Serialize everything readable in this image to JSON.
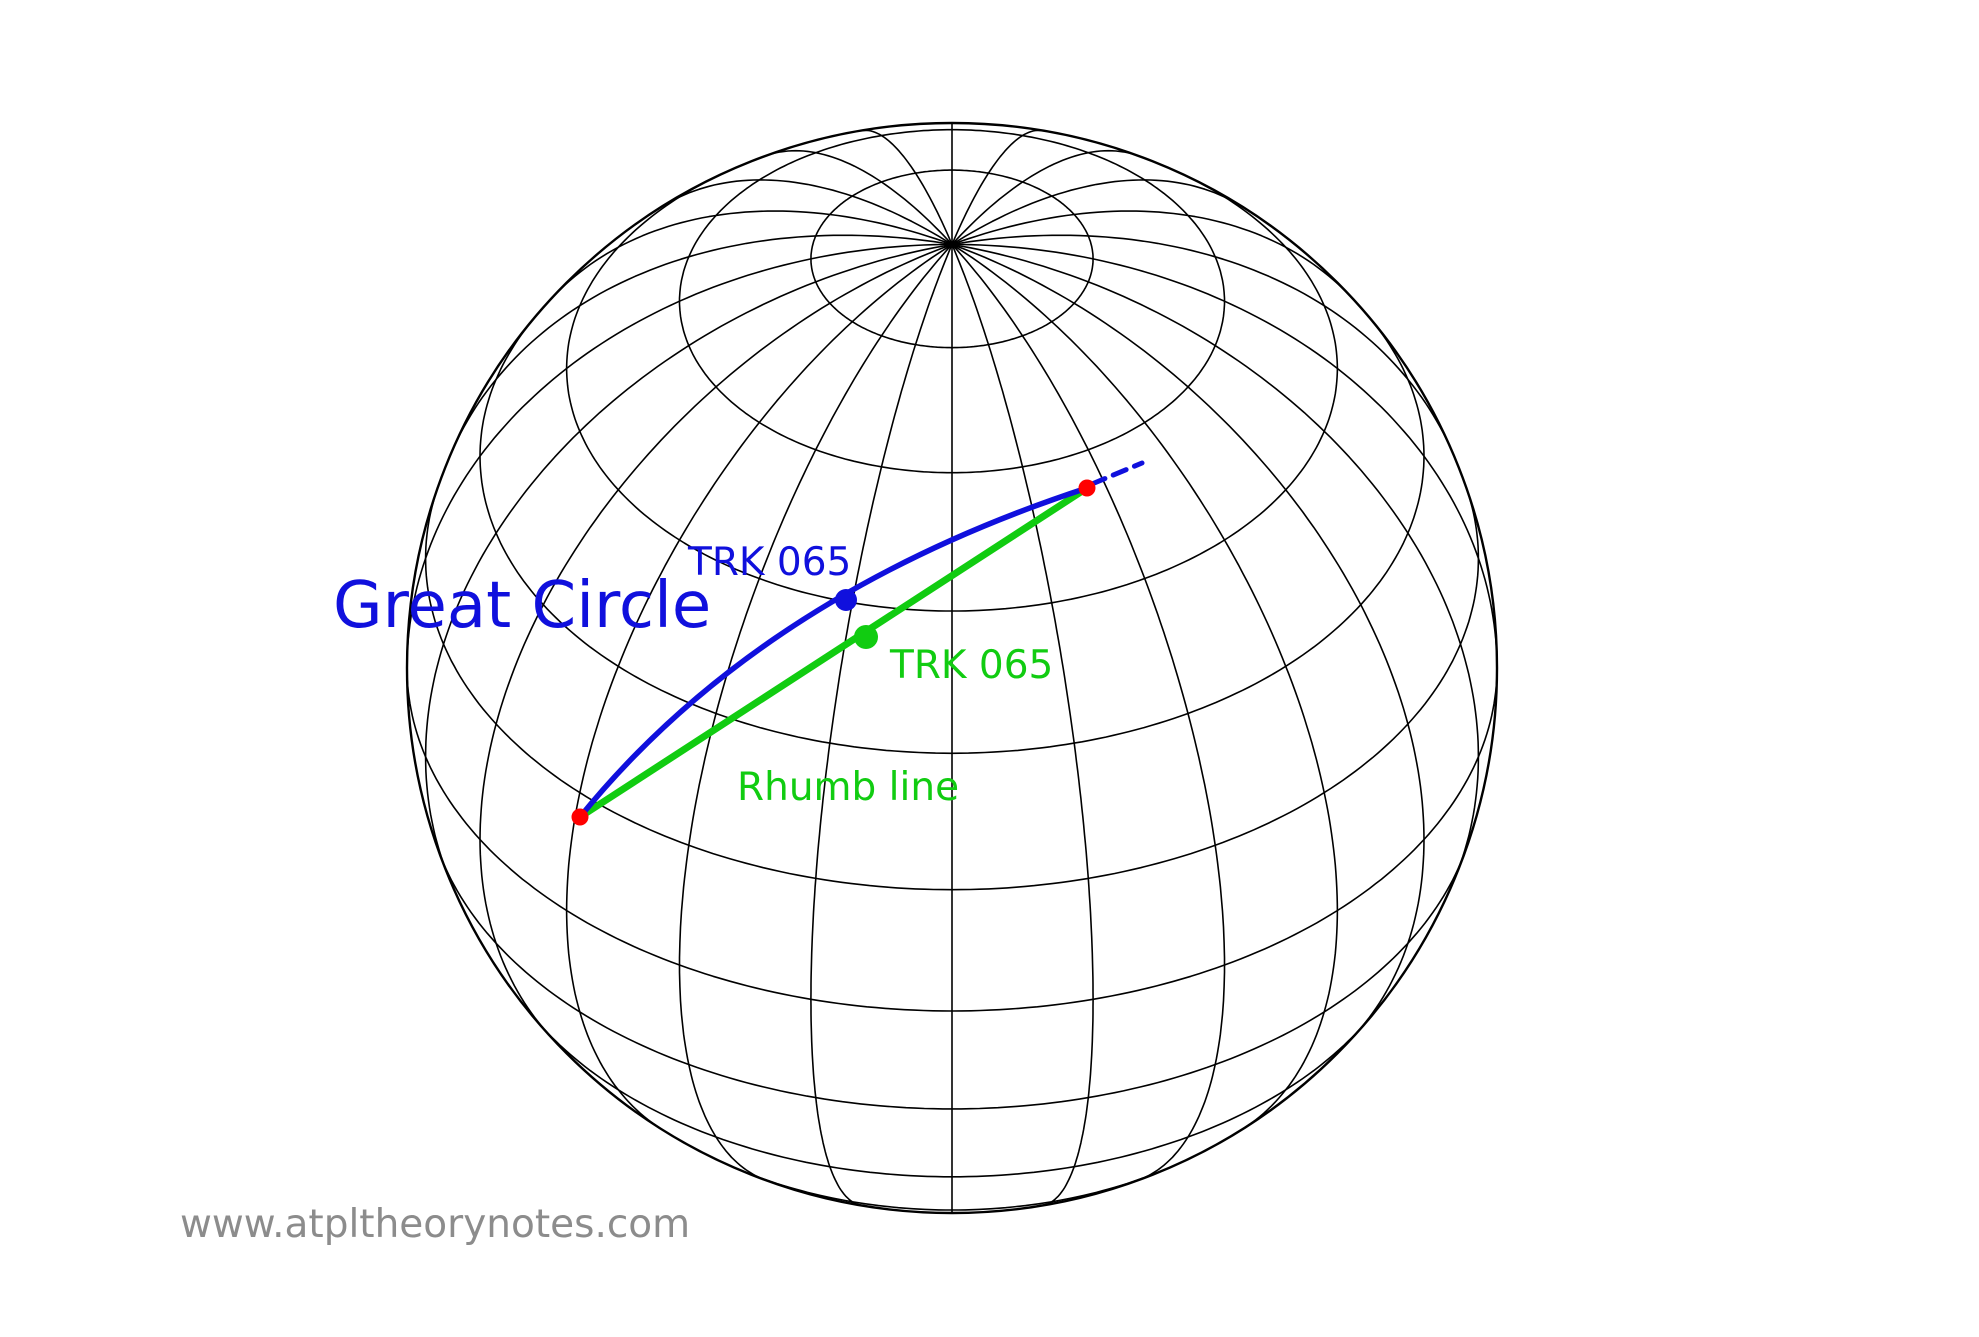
{
  "labels": {
    "great_circle": "Great Circle",
    "great_circle_track": "TRK 065",
    "rhumb_track": "TRK 065",
    "rhumb_line": "Rhumb line",
    "watermark": "www.atpltheorynotes.com"
  },
  "colors": {
    "background": "#ffffff",
    "grid": "#000000",
    "great_circle": "#1010dd",
    "rhumb_line": "#11cc11",
    "endpoints": "#ff0000",
    "watermark": "#8c8c8c"
  }
}
